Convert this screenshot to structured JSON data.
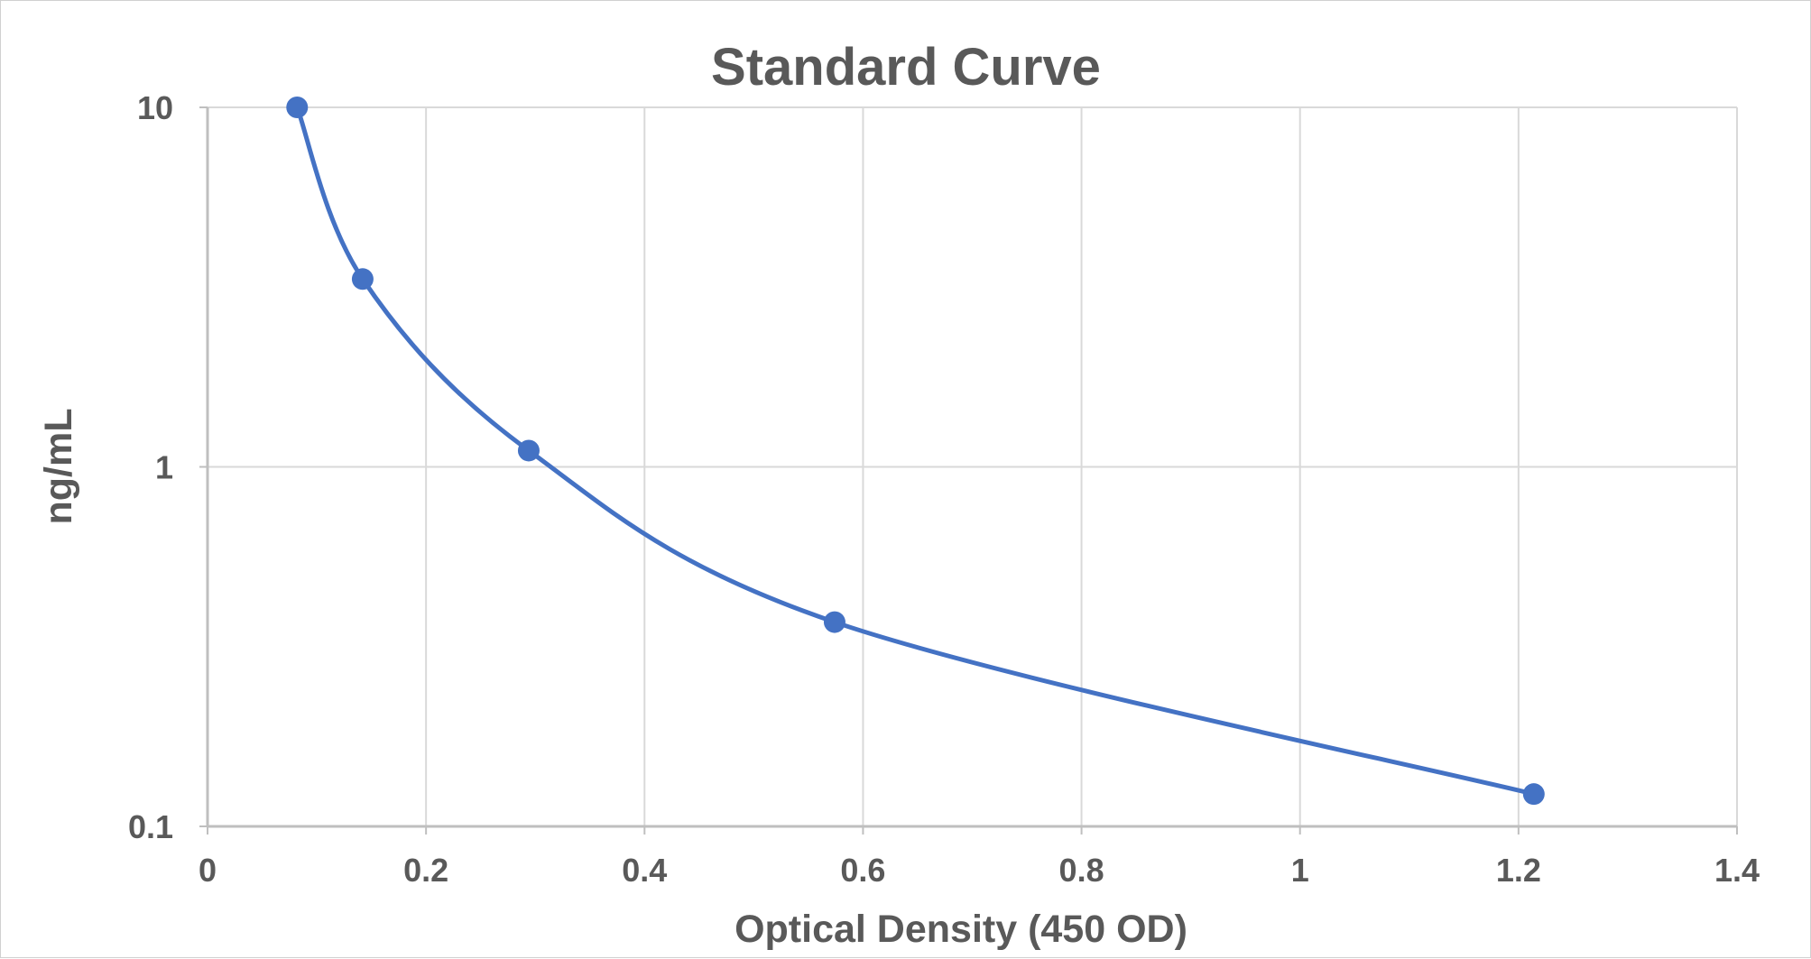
{
  "chart_data": {
    "type": "scatter",
    "title": "Standard Curve",
    "xlabel": "Optical Density (450 OD)",
    "ylabel": "ng/mL",
    "xlim": [
      0,
      1.4
    ],
    "ylim": [
      0.1,
      10
    ],
    "yscale": "log",
    "x_ticks": [
      "0",
      "0.2",
      "0.4",
      "0.6",
      "0.8",
      "1",
      "1.2",
      "1.4"
    ],
    "y_ticks": [
      "0.1",
      "1",
      "10"
    ],
    "grid": true,
    "legend": "none",
    "smooth_line": true,
    "colors": {
      "series": "#4472C4",
      "text": "#595959",
      "grid": "#D9D9D9",
      "axis": "#BFBFBF"
    },
    "series": [
      {
        "x": [
          0.082,
          0.142,
          0.294,
          0.574,
          1.214
        ],
        "y": [
          10,
          3.33,
          1.11,
          0.37,
          0.123
        ]
      }
    ]
  }
}
